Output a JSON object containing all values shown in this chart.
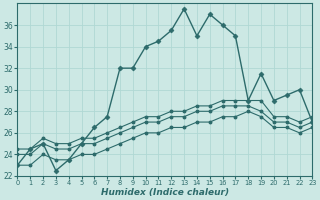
{
  "xlabel": "Humidex (Indice chaleur)",
  "x_values": [
    0,
    1,
    2,
    3,
    4,
    5,
    6,
    7,
    8,
    9,
    10,
    11,
    12,
    13,
    14,
    15,
    16,
    17,
    18,
    19,
    20,
    21,
    22,
    23
  ],
  "main_y": [
    23,
    24.5,
    25,
    22.5,
    23.5,
    25,
    26.5,
    27.5,
    32,
    32,
    34,
    34.5,
    35.5,
    37.5,
    35,
    37,
    36,
    35,
    29,
    31.5,
    29,
    29.5,
    30,
    27
  ],
  "line1_y": [
    24.5,
    24.5,
    25.5,
    25,
    25,
    25.5,
    25.5,
    26,
    26.5,
    27,
    27.5,
    27.5,
    28,
    28,
    28.5,
    28.5,
    29,
    29,
    29,
    29,
    27.5,
    27.5,
    27,
    27.5
  ],
  "line2_y": [
    24,
    24,
    25,
    24.5,
    24.5,
    25,
    25,
    25.5,
    26,
    26.5,
    27,
    27,
    27.5,
    27.5,
    28,
    28,
    28.5,
    28.5,
    28.5,
    28,
    27,
    27,
    26.5,
    27
  ],
  "line3_y": [
    23,
    23,
    24,
    23.5,
    23.5,
    24,
    24,
    24.5,
    25,
    25.5,
    26,
    26,
    26.5,
    26.5,
    27,
    27,
    27.5,
    27.5,
    28,
    27.5,
    26.5,
    26.5,
    26,
    26.5
  ],
  "line_color": "#2d6b6b",
  "bg_color": "#cce8e4",
  "grid_color": "#b0d8d4",
  "ylim": [
    22,
    38
  ],
  "xlim": [
    0,
    23
  ],
  "yticks": [
    22,
    24,
    26,
    28,
    30,
    32,
    34,
    36
  ],
  "xticks": [
    0,
    1,
    2,
    3,
    4,
    5,
    6,
    7,
    8,
    9,
    10,
    11,
    12,
    13,
    14,
    15,
    16,
    17,
    18,
    19,
    20,
    21,
    22,
    23
  ]
}
